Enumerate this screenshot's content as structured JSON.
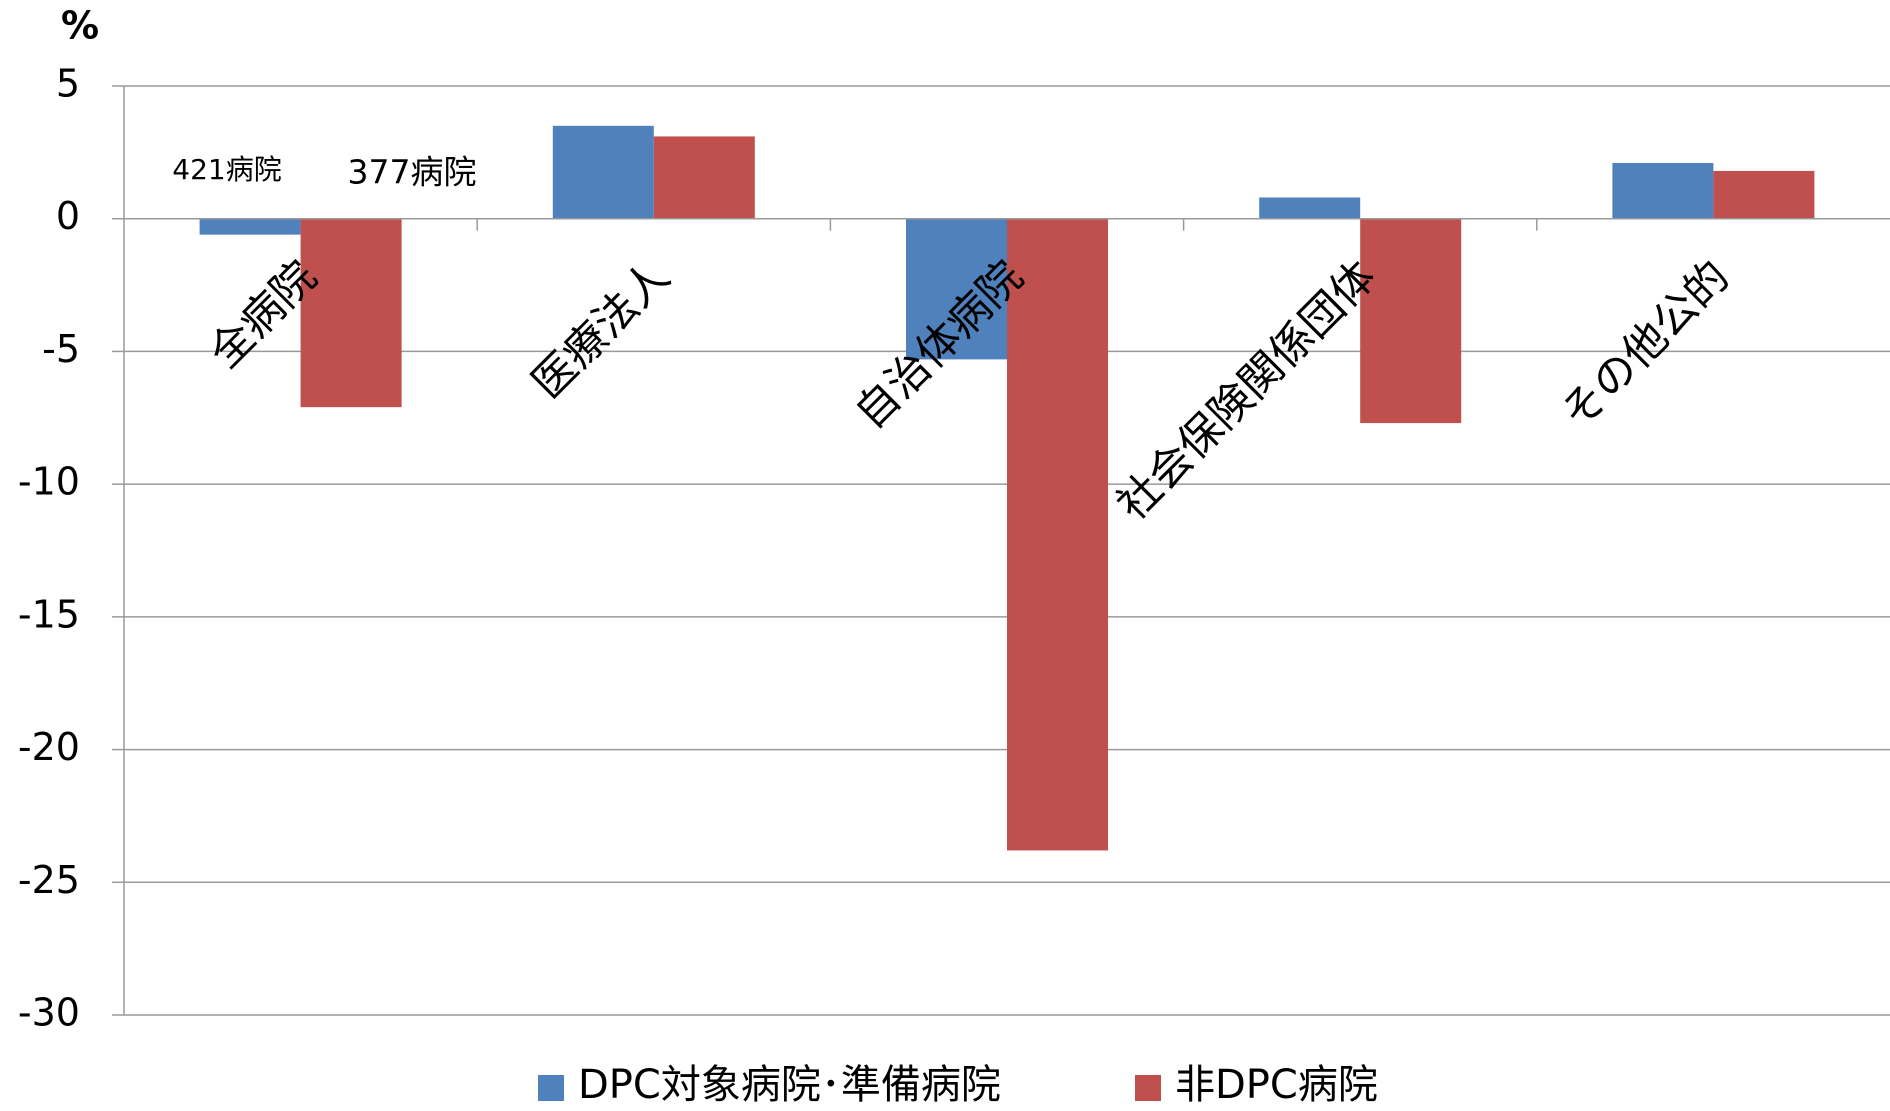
{
  "chart_data": {
    "type": "bar",
    "y_axis_label": "%",
    "categories": [
      "全病院",
      "医療法人",
      "自治体病院",
      "社会保険関係団体",
      "その他公的"
    ],
    "series": [
      {
        "name": "DPC対象病院･準備病院",
        "color": "#4f81bd",
        "values": [
          -0.6,
          3.5,
          -5.3,
          0.8,
          2.1
        ]
      },
      {
        "name": "非DPC病院",
        "color": "#c0504d",
        "values": [
          -7.1,
          3.1,
          -23.8,
          -7.7,
          1.8
        ]
      }
    ],
    "annotations": [
      "421病院",
      "377病院"
    ],
    "ylim": [
      -30,
      5
    ],
    "yticks": [
      -30,
      -25,
      -20,
      -15,
      -10,
      -5,
      0,
      5
    ],
    "grid": true,
    "legend": "bottom"
  }
}
